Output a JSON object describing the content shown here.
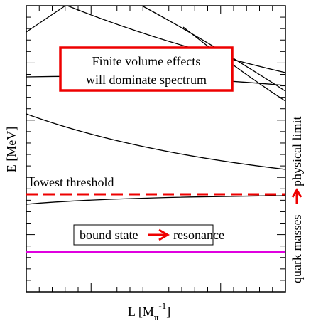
{
  "y_axis_label": "E [MeV]",
  "x_axis_label": {
    "main": "L [M",
    "sub": "π",
    "sup": "-1",
    "end": "]"
  },
  "threshold_label": "lowest threshold",
  "callout": {
    "line1": "Finite volume effects",
    "line2": "will dominate spectrum"
  },
  "transition": {
    "from": "bound state",
    "to": "resonance"
  },
  "side_label": {
    "from": "quark masses",
    "to": "physical limit"
  }
}
